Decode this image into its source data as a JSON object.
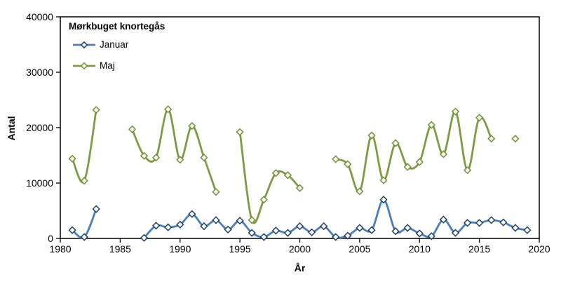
{
  "chart_data": {
    "type": "line",
    "title": "Mørkbuget knortegås",
    "xlabel": "År",
    "ylabel": "Antal",
    "xlim": [
      1980,
      2020
    ],
    "ylim": [
      0,
      40000
    ],
    "x_ticks": [
      1980,
      1985,
      1990,
      1995,
      2000,
      2005,
      2010,
      2015,
      2020
    ],
    "y_ticks": [
      0,
      10000,
      20000,
      30000,
      40000
    ],
    "grid": false,
    "legend_position": "top-left-inside",
    "axis_color": "#000000",
    "background_color": "#ffffff",
    "line_style": "smooth",
    "series": [
      {
        "name": "Januar",
        "color": "#4a7ebb",
        "marker": "diamond",
        "marker_fill": "#ffffff",
        "marker_stroke": "#17375e",
        "points": [
          [
            1981,
            1500
          ],
          [
            1982,
            250
          ],
          [
            1983,
            5300
          ],
          [
            1987,
            100
          ],
          [
            1988,
            2300
          ],
          [
            1989,
            2000
          ],
          [
            1990,
            2500
          ],
          [
            1991,
            4400
          ],
          [
            1992,
            2200
          ],
          [
            1993,
            3300
          ],
          [
            1994,
            1600
          ],
          [
            1995,
            3200
          ],
          [
            1996,
            1000
          ],
          [
            1997,
            250
          ],
          [
            1998,
            1400
          ],
          [
            1999,
            1000
          ],
          [
            2000,
            2200
          ],
          [
            2001,
            1100
          ],
          [
            2002,
            2200
          ],
          [
            2003,
            250
          ],
          [
            2004,
            500
          ],
          [
            2005,
            1900
          ],
          [
            2006,
            1500
          ],
          [
            2007,
            7000
          ],
          [
            2008,
            1300
          ],
          [
            2009,
            1900
          ],
          [
            2010,
            900
          ],
          [
            2011,
            400
          ],
          [
            2012,
            3400
          ],
          [
            2013,
            1000
          ],
          [
            2014,
            2800
          ],
          [
            2015,
            2800
          ],
          [
            2016,
            3300
          ],
          [
            2017,
            2900
          ],
          [
            2018,
            1900
          ],
          [
            2019,
            1500
          ]
        ]
      },
      {
        "name": "Maj",
        "color": "#7d9b44",
        "marker": "diamond",
        "marker_fill": "#f4f8e8",
        "marker_stroke": "#6f8a39",
        "points": [
          [
            1981,
            14400
          ],
          [
            1982,
            10400
          ],
          [
            1983,
            23200
          ],
          [
            1986,
            19700
          ],
          [
            1987,
            14900
          ],
          [
            1988,
            14600
          ],
          [
            1989,
            23300
          ],
          [
            1990,
            14200
          ],
          [
            1991,
            20300
          ],
          [
            1992,
            14600
          ],
          [
            1993,
            8400
          ],
          [
            1995,
            19200
          ],
          [
            1996,
            3300
          ],
          [
            1997,
            7000
          ],
          [
            1998,
            11800
          ],
          [
            1999,
            11400
          ],
          [
            2000,
            9100
          ],
          [
            2003,
            14300
          ],
          [
            2004,
            13400
          ],
          [
            2005,
            8500
          ],
          [
            2006,
            18600
          ],
          [
            2007,
            10500
          ],
          [
            2008,
            17200
          ],
          [
            2009,
            12900
          ],
          [
            2010,
            13800
          ],
          [
            2011,
            20500
          ],
          [
            2012,
            15200
          ],
          [
            2013,
            22900
          ],
          [
            2014,
            12300
          ],
          [
            2015,
            21800
          ],
          [
            2016,
            18000
          ],
          [
            2018,
            18000
          ]
        ]
      }
    ]
  }
}
